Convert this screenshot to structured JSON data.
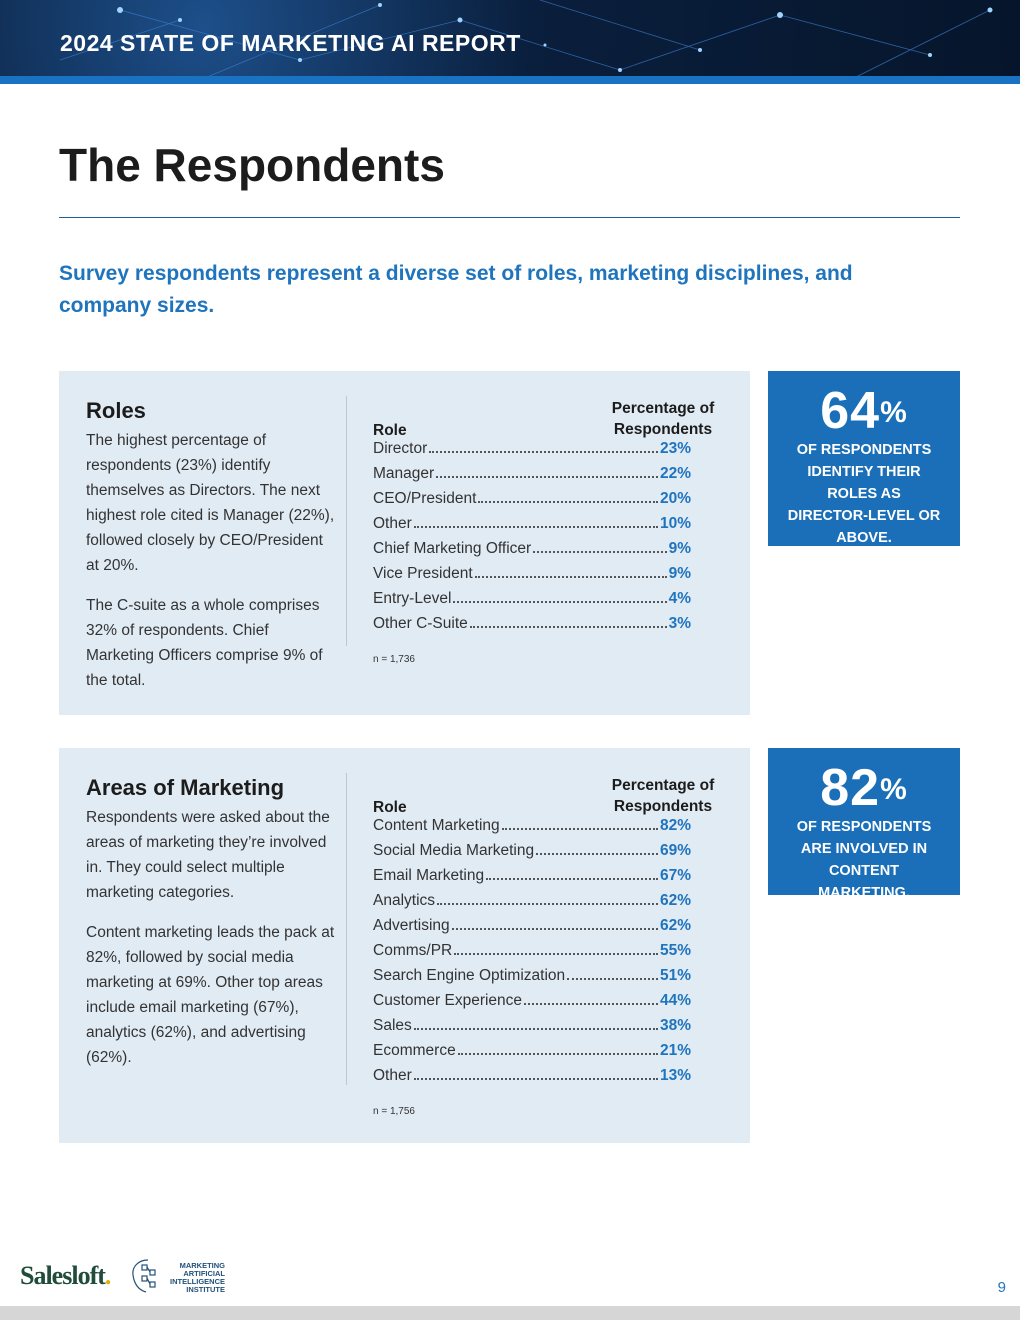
{
  "header": {
    "report_title": "2024 STATE OF MARKETING AI REPORT"
  },
  "page": {
    "title": "The Respondents",
    "subtitle": "Survey respondents represent a diverse set of roles, marketing disciplines, and company sizes.",
    "number": "9"
  },
  "roles": {
    "heading": "Roles",
    "paragraphs": [
      "The highest percentage of respondents (23%) identify themselves as Directors. The next highest role cited is Manager (22%), followed closely by CEO/President at 20%.",
      "The C-suite as a whole comprises 32% of respondents. Chief Marketing Officers comprise 9% of the total."
    ],
    "table_header_role": "Role",
    "table_header_pct": "Percentage of Respondents",
    "rows": [
      {
        "label": "Director",
        "value": "23%"
      },
      {
        "label": "Manager",
        "value": "22%"
      },
      {
        "label": "CEO/President",
        "value": "20%"
      },
      {
        "label": "Other",
        "value": "10%"
      },
      {
        "label": "Chief Marketing Officer",
        "value": "9%"
      },
      {
        "label": "Vice President",
        "value": "9%"
      },
      {
        "label": "Entry-Level",
        "value": "4%"
      },
      {
        "label": "Other C-Suite",
        "value": "3%"
      }
    ],
    "note": "n = 1,736",
    "stat_number": "64",
    "stat_symbol": "%",
    "stat_text": "OF RESPONDENTS IDENTIFY THEIR ROLES AS DIRECTOR-LEVEL OR ABOVE."
  },
  "areas": {
    "heading": "Areas of Marketing",
    "paragraphs": [
      "Respondents were asked about the areas of marketing they’re involved in. They could select multiple marketing categories.",
      "Content marketing leads the pack at 82%, followed by social media marketing at 69%. Other top areas include email marketing (67%), analytics (62%), and advertising (62%)."
    ],
    "table_header_role": "Role",
    "table_header_pct": "Percentage of Respondents",
    "rows": [
      {
        "label": "Content Marketing",
        "value": "82%"
      },
      {
        "label": "Social Media Marketing",
        "value": "69%"
      },
      {
        "label": "Email Marketing",
        "value": "67%"
      },
      {
        "label": "Analytics",
        "value": "62%"
      },
      {
        "label": "Advertising",
        "value": "62%"
      },
      {
        "label": "Comms/PR",
        "value": "55%"
      },
      {
        "label": "Search Engine Optimization",
        "value": "51%"
      },
      {
        "label": "Customer Experience",
        "value": "44%"
      },
      {
        "label": "Sales",
        "value": "38%"
      },
      {
        "label": "Ecommerce",
        "value": "21%"
      },
      {
        "label": "Other",
        "value": "13%"
      }
    ],
    "note": "n = 1,756",
    "stat_number": "82",
    "stat_symbol": "%",
    "stat_text": "OF RESPONDENTS ARE INVOLVED IN CONTENT MARKETING."
  },
  "footer": {
    "brand_name": "Salesloft",
    "brand_dot": ".",
    "partner_logo_lines": [
      "MARKETING",
      "ARTIFICIAL",
      "INTELLIGENCE",
      "INSTITUTE"
    ]
  }
}
